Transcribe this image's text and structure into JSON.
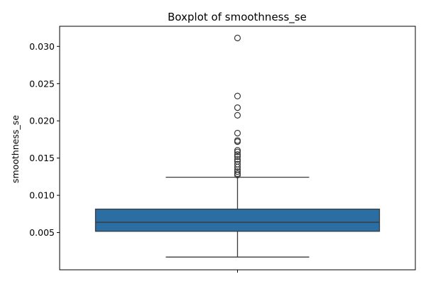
{
  "chart_data": {
    "type": "boxplot",
    "title": "Boxplot of smoothness_se",
    "xlabel": "",
    "ylabel": "smoothness_se",
    "ylim": [
      0.0,
      0.0327
    ],
    "yticks": [
      "0.005",
      "0.010",
      "0.015",
      "0.020",
      "0.025",
      "0.030"
    ],
    "ytick_values": [
      0.005,
      0.01,
      0.015,
      0.02,
      0.025,
      0.03
    ],
    "grid": false,
    "legend": "none",
    "box": {
      "whisker_low": 0.00171,
      "q1": 0.00517,
      "median": 0.00638,
      "q3": 0.00815,
      "whisker_high": 0.01243
    },
    "outliers": [
      0.03113,
      0.02333,
      0.02177,
      0.02075,
      0.01835,
      0.01736,
      0.01721,
      0.01604,
      0.01582,
      0.01548,
      0.01519,
      0.01482,
      0.01456,
      0.01418,
      0.0138,
      0.01345,
      0.01318,
      0.01291,
      0.01273
    ],
    "colors": {
      "box_fill": "#2b6ea4",
      "line": "#3a3a3a",
      "outlier_edge": "#3a3a3a"
    }
  }
}
